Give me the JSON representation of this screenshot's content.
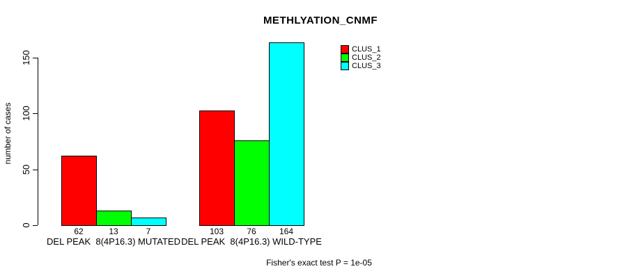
{
  "chart_data": {
    "type": "bar",
    "title": "METHLYATION_CNMF",
    "ylabel": "number of cases",
    "xlabel": "",
    "annotation": "Fisher's exact test P = 1e-05",
    "categories": [
      "DEL PEAK  8(4P16.3) MUTATED",
      "DEL PEAK  8(4P16.3) WILD-TYPE"
    ],
    "series": [
      {
        "name": "CLUS_1",
        "color": "#ff0000",
        "values": [
          62,
          103
        ]
      },
      {
        "name": "CLUS_2",
        "color": "#00ff00",
        "values": [
          13,
          76
        ]
      },
      {
        "name": "CLUS_3",
        "color": "#00ffff",
        "values": [
          7,
          164
        ]
      }
    ],
    "bar_value_labels": [
      [
        62,
        13,
        7
      ],
      [
        103,
        76,
        164
      ]
    ],
    "yticks": [
      0,
      50,
      100,
      150
    ],
    "ylim": [
      0,
      164
    ],
    "grid": false,
    "legend_position": "topright",
    "colors": {
      "background": "#ffffff",
      "axis": "#000000",
      "text": "#000000"
    }
  }
}
